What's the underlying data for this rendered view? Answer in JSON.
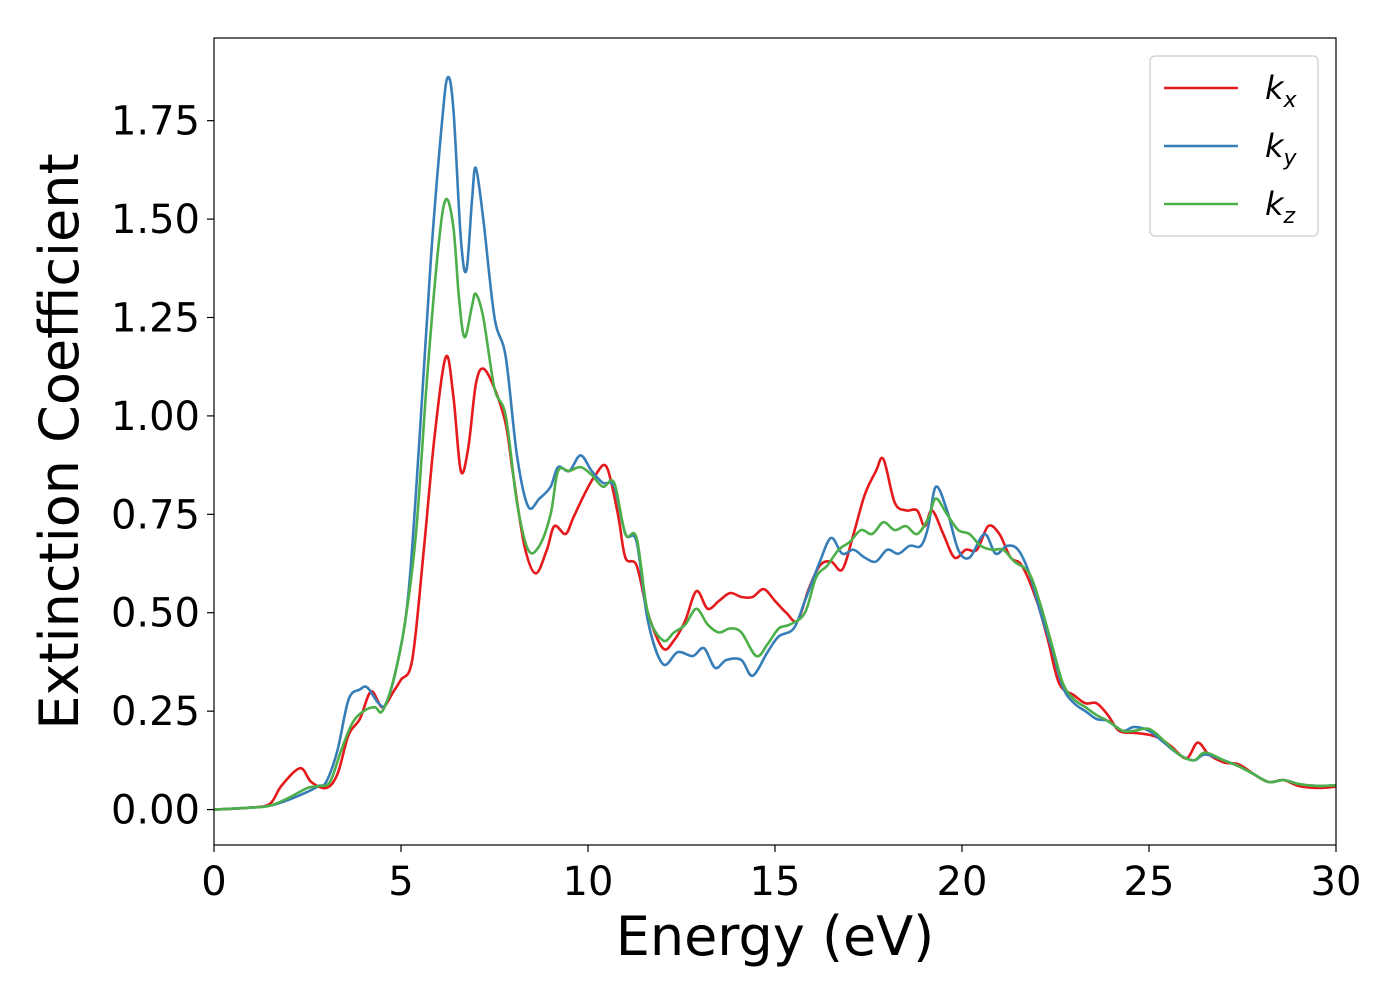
{
  "chart_data": {
    "type": "line",
    "title": "",
    "xlabel": "Energy (eV)",
    "ylabel": "Extinction Coefficient",
    "xlim": [
      0,
      30
    ],
    "ylim": [
      -0.09,
      1.96
    ],
    "x_ticks": [
      0,
      5,
      10,
      15,
      20,
      25,
      30
    ],
    "x_tick_labels": [
      "0",
      "5",
      "10",
      "15",
      "20",
      "25",
      "30"
    ],
    "y_ticks": [
      0.0,
      0.25,
      0.5,
      0.75,
      1.0,
      1.25,
      1.5,
      1.75
    ],
    "y_tick_labels": [
      "0.00",
      "0.25",
      "0.50",
      "0.75",
      "1.00",
      "1.25",
      "1.50",
      "1.75"
    ],
    "grid": false,
    "legend_position": "top-right",
    "series": [
      {
        "name": "k_x",
        "legend_base": "k",
        "legend_sub": "x",
        "color": "#e41a1c",
        "points": [
          [
            0,
            0
          ],
          [
            1,
            0.005
          ],
          [
            1.5,
            0.015
          ],
          [
            1.8,
            0.06
          ],
          [
            2.3,
            0.105
          ],
          [
            2.6,
            0.07
          ],
          [
            3.0,
            0.055
          ],
          [
            3.3,
            0.09
          ],
          [
            3.6,
            0.19
          ],
          [
            3.9,
            0.23
          ],
          [
            4.2,
            0.3
          ],
          [
            4.5,
            0.26
          ],
          [
            4.8,
            0.3
          ],
          [
            5.0,
            0.33
          ],
          [
            5.3,
            0.38
          ],
          [
            5.6,
            0.65
          ],
          [
            5.9,
            0.95
          ],
          [
            6.2,
            1.15
          ],
          [
            6.4,
            1.05
          ],
          [
            6.6,
            0.86
          ],
          [
            6.8,
            0.92
          ],
          [
            7.0,
            1.08
          ],
          [
            7.2,
            1.12
          ],
          [
            7.5,
            1.07
          ],
          [
            7.8,
            0.98
          ],
          [
            8.0,
            0.85
          ],
          [
            8.3,
            0.67
          ],
          [
            8.6,
            0.6
          ],
          [
            8.9,
            0.66
          ],
          [
            9.1,
            0.72
          ],
          [
            9.4,
            0.7
          ],
          [
            9.6,
            0.74
          ],
          [
            9.9,
            0.8
          ],
          [
            10.2,
            0.85
          ],
          [
            10.5,
            0.87
          ],
          [
            10.8,
            0.75
          ],
          [
            11.0,
            0.64
          ],
          [
            11.3,
            0.62
          ],
          [
            11.6,
            0.5
          ],
          [
            12.0,
            0.41
          ],
          [
            12.3,
            0.43
          ],
          [
            12.6,
            0.48
          ],
          [
            12.9,
            0.555
          ],
          [
            13.2,
            0.51
          ],
          [
            13.5,
            0.53
          ],
          [
            13.8,
            0.55
          ],
          [
            14.1,
            0.54
          ],
          [
            14.4,
            0.54
          ],
          [
            14.7,
            0.56
          ],
          [
            15.0,
            0.53
          ],
          [
            15.3,
            0.5
          ],
          [
            15.6,
            0.48
          ],
          [
            15.9,
            0.56
          ],
          [
            16.2,
            0.62
          ],
          [
            16.5,
            0.63
          ],
          [
            16.8,
            0.61
          ],
          [
            17.1,
            0.7
          ],
          [
            17.4,
            0.8
          ],
          [
            17.7,
            0.86
          ],
          [
            17.9,
            0.89
          ],
          [
            18.2,
            0.78
          ],
          [
            18.5,
            0.76
          ],
          [
            18.8,
            0.76
          ],
          [
            19.0,
            0.72
          ],
          [
            19.2,
            0.76
          ],
          [
            19.5,
            0.7
          ],
          [
            19.8,
            0.64
          ],
          [
            20.1,
            0.66
          ],
          [
            20.4,
            0.66
          ],
          [
            20.7,
            0.72
          ],
          [
            21.0,
            0.7
          ],
          [
            21.3,
            0.64
          ],
          [
            21.6,
            0.62
          ],
          [
            22.0,
            0.53
          ],
          [
            22.3,
            0.43
          ],
          [
            22.6,
            0.32
          ],
          [
            23.0,
            0.29
          ],
          [
            23.3,
            0.27
          ],
          [
            23.6,
            0.27
          ],
          [
            23.9,
            0.24
          ],
          [
            24.2,
            0.2
          ],
          [
            24.6,
            0.195
          ],
          [
            25.0,
            0.19
          ],
          [
            25.3,
            0.18
          ],
          [
            25.6,
            0.16
          ],
          [
            26.0,
            0.13
          ],
          [
            26.3,
            0.17
          ],
          [
            26.6,
            0.14
          ],
          [
            27.0,
            0.12
          ],
          [
            27.4,
            0.115
          ],
          [
            27.8,
            0.09
          ],
          [
            28.2,
            0.07
          ],
          [
            28.6,
            0.075
          ],
          [
            29.0,
            0.06
          ],
          [
            29.5,
            0.055
          ],
          [
            30,
            0.058
          ]
        ]
      },
      {
        "name": "k_y",
        "legend_base": "k",
        "legend_sub": "y",
        "color": "#377eb8",
        "points": [
          [
            0,
            0
          ],
          [
            1,
            0.005
          ],
          [
            1.5,
            0.01
          ],
          [
            2.0,
            0.025
          ],
          [
            2.5,
            0.045
          ],
          [
            2.8,
            0.06
          ],
          [
            3.0,
            0.07
          ],
          [
            3.3,
            0.15
          ],
          [
            3.6,
            0.28
          ],
          [
            3.9,
            0.305
          ],
          [
            4.1,
            0.31
          ],
          [
            4.4,
            0.27
          ],
          [
            4.6,
            0.27
          ],
          [
            4.9,
            0.37
          ],
          [
            5.2,
            0.55
          ],
          [
            5.5,
            0.95
          ],
          [
            5.8,
            1.4
          ],
          [
            6.1,
            1.75
          ],
          [
            6.25,
            1.86
          ],
          [
            6.4,
            1.78
          ],
          [
            6.6,
            1.45
          ],
          [
            6.75,
            1.37
          ],
          [
            6.9,
            1.55
          ],
          [
            7.0,
            1.63
          ],
          [
            7.2,
            1.5
          ],
          [
            7.5,
            1.25
          ],
          [
            7.8,
            1.15
          ],
          [
            8.1,
            0.9
          ],
          [
            8.4,
            0.77
          ],
          [
            8.7,
            0.79
          ],
          [
            9.0,
            0.82
          ],
          [
            9.2,
            0.87
          ],
          [
            9.5,
            0.86
          ],
          [
            9.8,
            0.9
          ],
          [
            10.1,
            0.86
          ],
          [
            10.4,
            0.83
          ],
          [
            10.7,
            0.82
          ],
          [
            11.0,
            0.7
          ],
          [
            11.3,
            0.68
          ],
          [
            11.6,
            0.48
          ],
          [
            12.0,
            0.37
          ],
          [
            12.4,
            0.4
          ],
          [
            12.8,
            0.39
          ],
          [
            13.1,
            0.41
          ],
          [
            13.4,
            0.36
          ],
          [
            13.7,
            0.38
          ],
          [
            14.1,
            0.38
          ],
          [
            14.4,
            0.34
          ],
          [
            14.8,
            0.4
          ],
          [
            15.1,
            0.44
          ],
          [
            15.5,
            0.46
          ],
          [
            15.8,
            0.53
          ],
          [
            16.2,
            0.63
          ],
          [
            16.5,
            0.69
          ],
          [
            16.8,
            0.65
          ],
          [
            17.1,
            0.66
          ],
          [
            17.4,
            0.64
          ],
          [
            17.7,
            0.63
          ],
          [
            18.0,
            0.66
          ],
          [
            18.3,
            0.65
          ],
          [
            18.6,
            0.67
          ],
          [
            18.9,
            0.67
          ],
          [
            19.1,
            0.72
          ],
          [
            19.3,
            0.82
          ],
          [
            19.6,
            0.76
          ],
          [
            19.9,
            0.66
          ],
          [
            20.2,
            0.64
          ],
          [
            20.6,
            0.7
          ],
          [
            20.9,
            0.65
          ],
          [
            21.2,
            0.67
          ],
          [
            21.5,
            0.66
          ],
          [
            21.8,
            0.6
          ],
          [
            22.1,
            0.5
          ],
          [
            22.4,
            0.41
          ],
          [
            22.7,
            0.31
          ],
          [
            23.0,
            0.27
          ],
          [
            23.3,
            0.25
          ],
          [
            23.6,
            0.23
          ],
          [
            23.9,
            0.225
          ],
          [
            24.3,
            0.2
          ],
          [
            24.6,
            0.21
          ],
          [
            25.0,
            0.2
          ],
          [
            25.4,
            0.17
          ],
          [
            25.8,
            0.14
          ],
          [
            26.2,
            0.125
          ],
          [
            26.5,
            0.14
          ],
          [
            27.0,
            0.125
          ],
          [
            27.4,
            0.11
          ],
          [
            27.8,
            0.09
          ],
          [
            28.2,
            0.07
          ],
          [
            28.6,
            0.075
          ],
          [
            29.0,
            0.065
          ],
          [
            29.5,
            0.06
          ],
          [
            30,
            0.062
          ]
        ]
      },
      {
        "name": "k_z",
        "legend_base": "k",
        "legend_sub": "z",
        "color": "#4daf4a",
        "points": [
          [
            0,
            0
          ],
          [
            1,
            0.005
          ],
          [
            1.5,
            0.01
          ],
          [
            2.0,
            0.03
          ],
          [
            2.5,
            0.055
          ],
          [
            2.8,
            0.06
          ],
          [
            3.1,
            0.07
          ],
          [
            3.4,
            0.15
          ],
          [
            3.7,
            0.22
          ],
          [
            4.0,
            0.25
          ],
          [
            4.3,
            0.26
          ],
          [
            4.5,
            0.25
          ],
          [
            4.8,
            0.33
          ],
          [
            5.1,
            0.47
          ],
          [
            5.4,
            0.7
          ],
          [
            5.7,
            1.1
          ],
          [
            6.0,
            1.43
          ],
          [
            6.2,
            1.55
          ],
          [
            6.4,
            1.48
          ],
          [
            6.55,
            1.3
          ],
          [
            6.7,
            1.2
          ],
          [
            6.9,
            1.28
          ],
          [
            7.0,
            1.31
          ],
          [
            7.2,
            1.25
          ],
          [
            7.5,
            1.07
          ],
          [
            7.8,
            1.0
          ],
          [
            8.1,
            0.78
          ],
          [
            8.4,
            0.66
          ],
          [
            8.7,
            0.67
          ],
          [
            9.0,
            0.75
          ],
          [
            9.2,
            0.86
          ],
          [
            9.5,
            0.86
          ],
          [
            9.8,
            0.87
          ],
          [
            10.1,
            0.85
          ],
          [
            10.4,
            0.82
          ],
          [
            10.7,
            0.83
          ],
          [
            11.0,
            0.7
          ],
          [
            11.3,
            0.69
          ],
          [
            11.6,
            0.5
          ],
          [
            12.0,
            0.43
          ],
          [
            12.3,
            0.45
          ],
          [
            12.6,
            0.47
          ],
          [
            12.9,
            0.51
          ],
          [
            13.2,
            0.47
          ],
          [
            13.5,
            0.45
          ],
          [
            13.8,
            0.46
          ],
          [
            14.1,
            0.45
          ],
          [
            14.5,
            0.39
          ],
          [
            14.8,
            0.42
          ],
          [
            15.1,
            0.46
          ],
          [
            15.4,
            0.47
          ],
          [
            15.8,
            0.5
          ],
          [
            16.1,
            0.59
          ],
          [
            16.4,
            0.62
          ],
          [
            16.7,
            0.66
          ],
          [
            17.0,
            0.68
          ],
          [
            17.3,
            0.71
          ],
          [
            17.6,
            0.7
          ],
          [
            17.9,
            0.73
          ],
          [
            18.2,
            0.71
          ],
          [
            18.5,
            0.72
          ],
          [
            18.8,
            0.7
          ],
          [
            19.1,
            0.74
          ],
          [
            19.3,
            0.79
          ],
          [
            19.6,
            0.75
          ],
          [
            19.9,
            0.71
          ],
          [
            20.2,
            0.7
          ],
          [
            20.5,
            0.67
          ],
          [
            20.8,
            0.66
          ],
          [
            21.1,
            0.66
          ],
          [
            21.4,
            0.63
          ],
          [
            21.8,
            0.6
          ],
          [
            22.1,
            0.52
          ],
          [
            22.4,
            0.42
          ],
          [
            22.7,
            0.32
          ],
          [
            23.0,
            0.28
          ],
          [
            23.3,
            0.26
          ],
          [
            23.6,
            0.24
          ],
          [
            23.9,
            0.225
          ],
          [
            24.3,
            0.2
          ],
          [
            24.6,
            0.2
          ],
          [
            25.0,
            0.205
          ],
          [
            25.4,
            0.175
          ],
          [
            25.8,
            0.14
          ],
          [
            26.2,
            0.125
          ],
          [
            26.5,
            0.145
          ],
          [
            27.0,
            0.125
          ],
          [
            27.4,
            0.11
          ],
          [
            27.8,
            0.09
          ],
          [
            28.2,
            0.07
          ],
          [
            28.6,
            0.075
          ],
          [
            29.0,
            0.065
          ],
          [
            29.5,
            0.06
          ],
          [
            30,
            0.062
          ]
        ]
      }
    ]
  }
}
